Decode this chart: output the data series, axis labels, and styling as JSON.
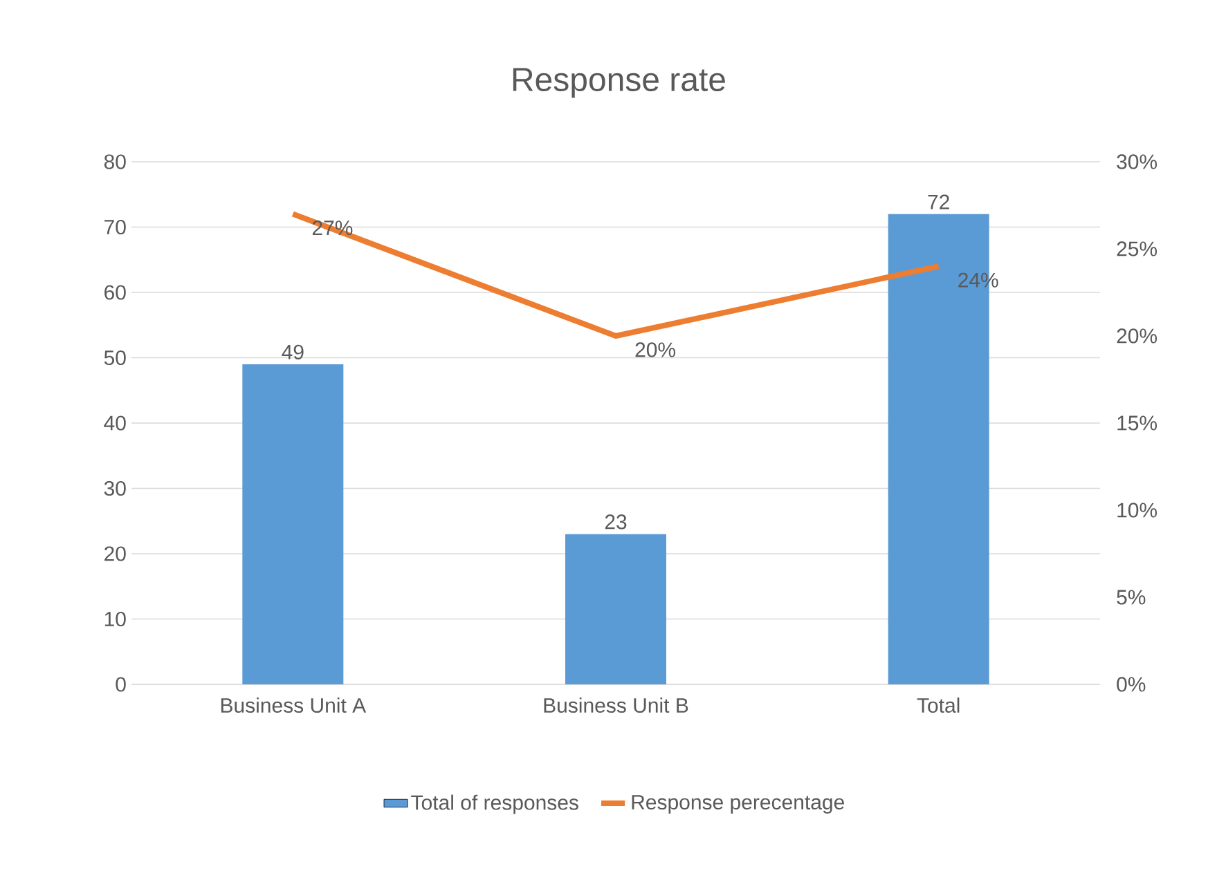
{
  "chart_data": {
    "type": "bar",
    "title": "Response rate",
    "categories": [
      "Business Unit A",
      "Business Unit B",
      "Total"
    ],
    "series": [
      {
        "name": "Total of responses",
        "color": "#5b9bd5",
        "values": [
          49,
          23,
          72
        ],
        "value_labels": [
          "49",
          "23",
          "72"
        ]
      },
      {
        "name": "Response perecentage",
        "type": "line",
        "axis": "y2",
        "color": "#ed7d31",
        "values": [
          27,
          20,
          24
        ],
        "value_labels": [
          "27%",
          "20%",
          "24%"
        ]
      }
    ],
    "ylim": [
      0,
      80
    ],
    "yticks": [
      0,
      10,
      20,
      30,
      40,
      50,
      60,
      70,
      80
    ],
    "y2lim": [
      0,
      30
    ],
    "y2ticks": [
      {
        "value": 0,
        "label": "0%"
      },
      {
        "value": 5,
        "label": "5%"
      },
      {
        "value": 10,
        "label": "10%"
      },
      {
        "value": 15,
        "label": "15%"
      },
      {
        "value": 20,
        "label": "20%"
      },
      {
        "value": 25,
        "label": "25%"
      },
      {
        "value": 30,
        "label": "30%"
      }
    ],
    "grid": "y",
    "legend": "bottom"
  }
}
